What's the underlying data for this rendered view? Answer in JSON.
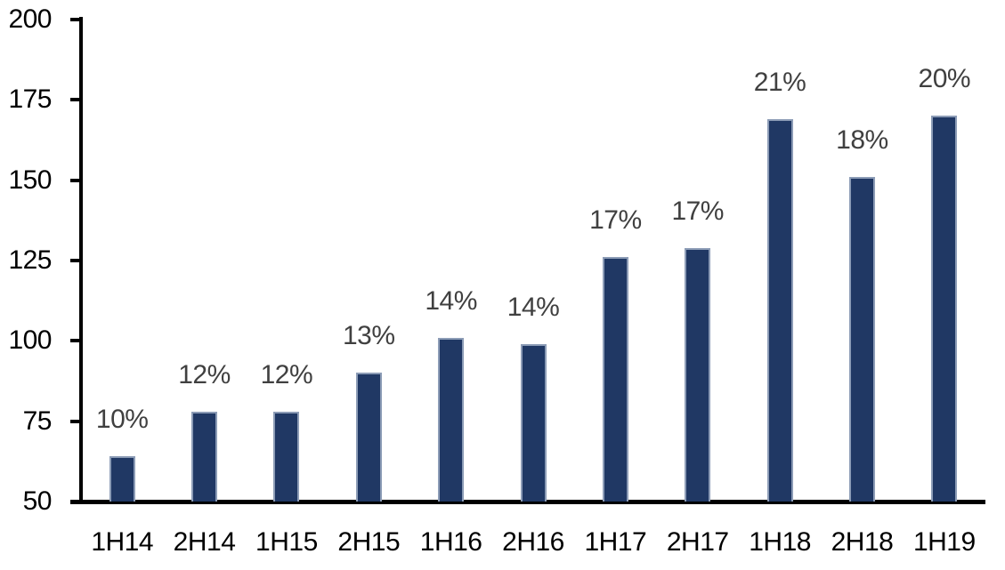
{
  "chart_data": {
    "type": "bar",
    "title": "",
    "xlabel": "",
    "ylabel": "",
    "categories": [
      "1H14",
      "2H14",
      "1H15",
      "2H15",
      "1H16",
      "2H16",
      "1H17",
      "2H17",
      "1H18",
      "2H18",
      "1H19"
    ],
    "values": [
      64,
      78,
      78,
      90,
      101,
      99,
      126,
      129,
      169,
      151,
      170
    ],
    "bar_labels": [
      "10%",
      "12%",
      "12%",
      "13%",
      "14%",
      "14%",
      "17%",
      "17%",
      "21%",
      "18%",
      "20%"
    ],
    "ylim": [
      50,
      200
    ],
    "y_ticks": [
      50,
      75,
      100,
      125,
      150,
      175,
      200
    ],
    "grid": false,
    "legend": false,
    "colors": {
      "bar_fill": "#203864",
      "bar_edge": "#8C9CB6",
      "data_label": "#404040",
      "axis": "#000000",
      "tick_label": "#000000",
      "background": "#FFFFFF"
    }
  }
}
